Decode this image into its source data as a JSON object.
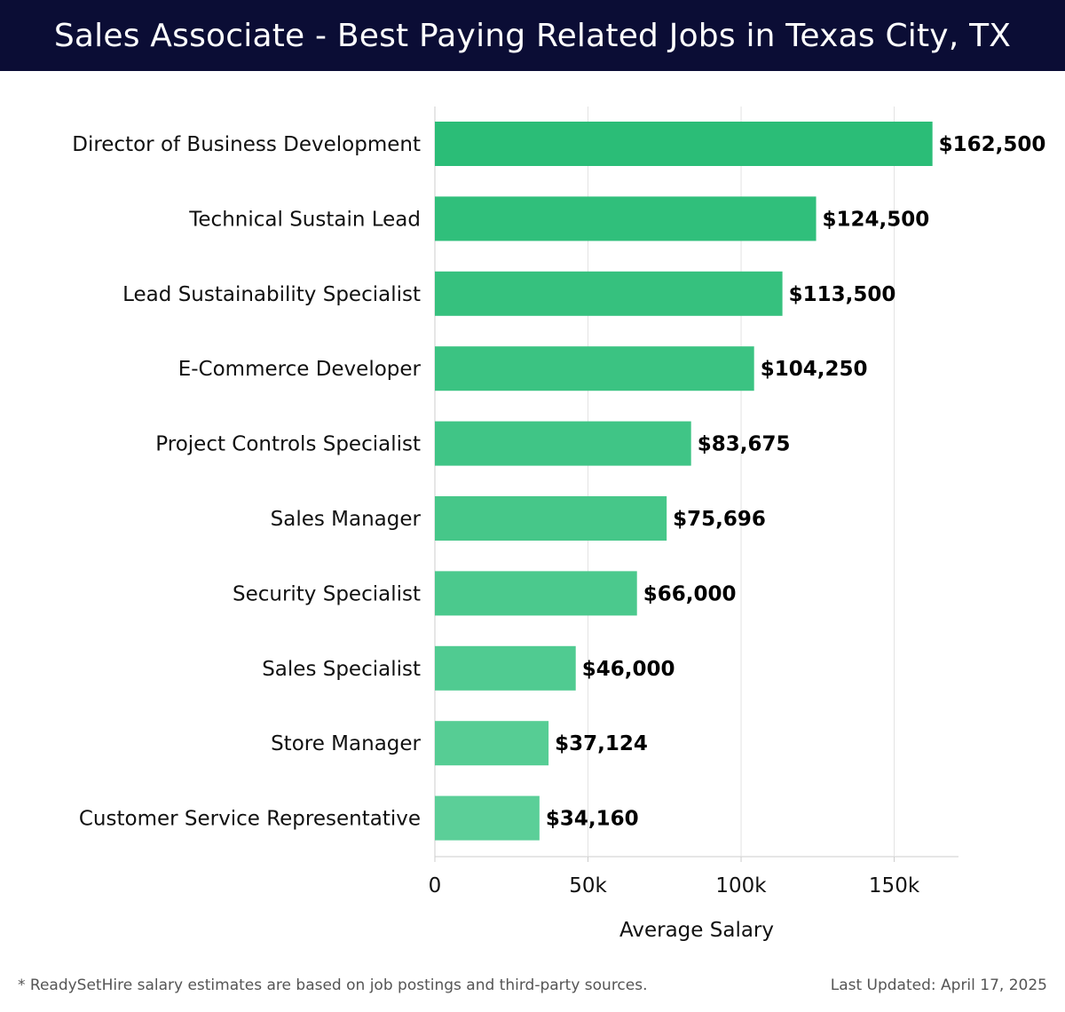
{
  "header": {
    "title": "Sales Associate - Best Paying Related Jobs in Texas City, TX"
  },
  "footer": {
    "note": "* ReadySetHire salary estimates are based on job postings and third-party sources.",
    "updated": "Last Updated: April 17, 2025"
  },
  "chart_data": {
    "type": "bar",
    "orientation": "horizontal",
    "categories": [
      "Director of Business Development",
      "Technical Sustain Lead",
      "Lead Sustainability Specialist",
      "E-Commerce Developer",
      "Project Controls Specialist",
      "Sales Manager",
      "Security Specialist",
      "Sales Specialist",
      "Store Manager",
      "Customer Service Representative"
    ],
    "values": [
      162500,
      124500,
      113500,
      104250,
      83675,
      75696,
      66000,
      46000,
      37124,
      34160
    ],
    "value_labels": [
      "$162,500",
      "$124,500",
      "$113,500",
      "$104,250",
      "$83,675",
      "$75,696",
      "$66,000",
      "$46,000",
      "$37,124",
      "$34,160"
    ],
    "xlabel": "Average Salary",
    "ylabel": "",
    "xlim": [
      0,
      171000
    ],
    "xticks": [
      0,
      50000,
      100000,
      150000
    ],
    "xtick_labels": [
      "0",
      "50k",
      "100k",
      "150k"
    ],
    "grid": true,
    "bar_color_dark": "#2bbd77",
    "bar_color_light": "#5bcf98"
  }
}
